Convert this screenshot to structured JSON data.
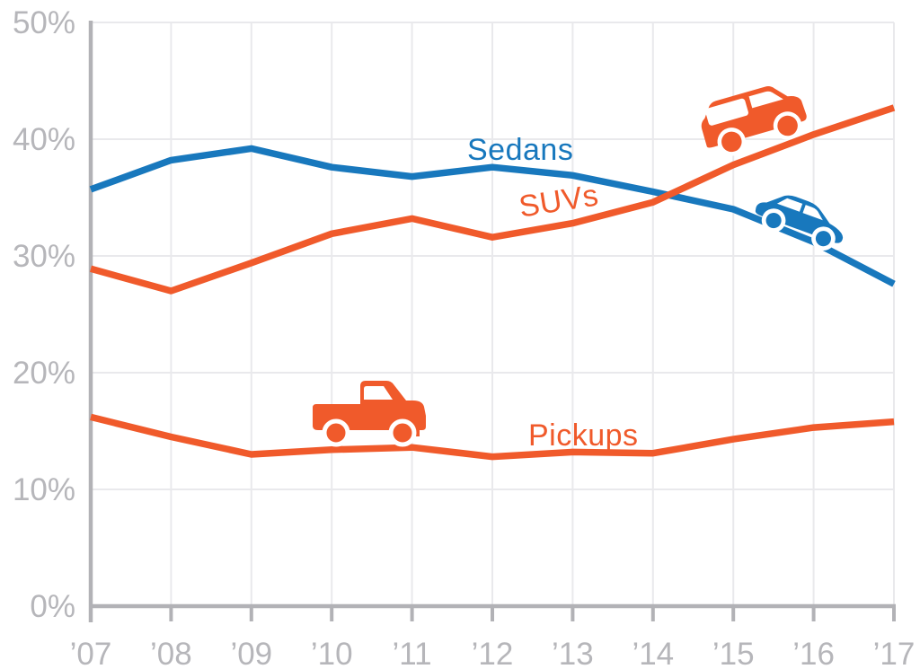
{
  "chart_data": {
    "type": "line",
    "x_labels": [
      "’07",
      "’08",
      "’09",
      "’10",
      "’11",
      "’12",
      "’13",
      "’14",
      "’15",
      "’16",
      "’17"
    ],
    "y_ticks": [
      0,
      10,
      20,
      30,
      40,
      50
    ],
    "y_tick_labels": [
      "0%",
      "10%",
      "20%",
      "30%",
      "40%",
      "50%"
    ],
    "ylim": [
      0,
      50
    ],
    "grid": true,
    "legend_position": "inline-labels-on-lines",
    "series": [
      {
        "name": "Sedans",
        "color": "#1878bd",
        "values": [
          35.7,
          38.2,
          39.2,
          37.6,
          36.8,
          37.6,
          36.9,
          35.5,
          34.0,
          31.2,
          27.6
        ]
      },
      {
        "name": "SUVs",
        "color": "#f05a2b",
        "values": [
          28.9,
          27.0,
          29.4,
          31.9,
          33.2,
          31.6,
          32.8,
          34.6,
          37.8,
          40.4,
          42.7
        ]
      },
      {
        "name": "Pickups",
        "color": "#f05a2b",
        "values": [
          16.2,
          14.5,
          13.0,
          13.4,
          13.6,
          12.8,
          13.2,
          13.1,
          14.3,
          15.3,
          15.8
        ]
      }
    ]
  },
  "labels": {
    "sedans": "Sedans",
    "suvs": "SUVs",
    "pickups": "Pickups"
  },
  "icons": {
    "pickup": "pickup-truck-icon",
    "suv": "suv-icon",
    "sedan": "sedan-icon"
  },
  "colors": {
    "sedan_blue": "#1878bd",
    "suv_orange": "#f05a2b",
    "axis_gray": "#b2b2b6",
    "grid_gray": "#e9e9ec",
    "tick_label_gray": "#b6b6ba",
    "background": "#ffffff"
  }
}
